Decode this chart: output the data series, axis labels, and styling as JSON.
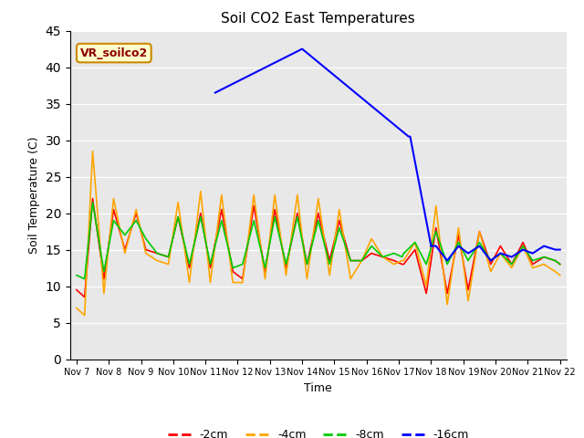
{
  "title": "Soil CO2 East Temperatures",
  "xlabel": "Time",
  "ylabel": "Soil Temperature (C)",
  "ylim": [
    0,
    45
  ],
  "bg_color": "#e8e8e8",
  "legend_label": "VR_soilco2",
  "tick_labels": [
    "Nov 7",
    "Nov 8",
    "Nov 9",
    "Nov 10",
    "Nov 11",
    "Nov 12",
    "Nov 13",
    "Nov 14",
    "Nov 15",
    "Nov 16",
    "Nov 17",
    "Nov 18",
    "Nov 19",
    "Nov 20",
    "Nov 21",
    "Nov 22"
  ],
  "series_labels": [
    "-2cm",
    "-4cm",
    "-8cm",
    "-16cm"
  ],
  "series_colors": [
    "#ff0000",
    "#ffa500",
    "#00cc00",
    "#0000ff"
  ],
  "blue_line_x": [
    4.3,
    7.0,
    10.3,
    10.35,
    11.0
  ],
  "blue_line_y": [
    36.5,
    42.5,
    30.5,
    30.5,
    15.5
  ],
  "red_x": [
    0.0,
    0.25,
    0.5,
    0.85,
    1.15,
    1.5,
    1.85,
    2.15,
    2.5,
    2.85,
    3.15,
    3.5,
    3.85,
    4.15,
    4.5,
    4.85,
    5.15,
    5.5,
    5.85,
    6.15,
    6.5,
    6.85,
    7.15,
    7.5,
    7.85,
    8.15,
    8.5,
    8.85,
    9.15,
    9.5,
    9.85,
    10.1,
    10.15,
    10.5,
    10.85,
    11.15,
    11.5,
    11.85,
    12.15,
    12.5,
    12.85,
    13.15,
    13.5,
    13.85,
    14.15,
    14.5,
    14.85,
    15.0
  ],
  "red_y": [
    9.5,
    8.5,
    22.0,
    11.0,
    20.5,
    15.0,
    20.0,
    15.0,
    14.5,
    14.0,
    19.5,
    12.5,
    20.0,
    12.5,
    20.5,
    12.0,
    11.0,
    21.0,
    12.0,
    20.5,
    12.5,
    20.0,
    13.0,
    20.0,
    13.5,
    19.0,
    13.5,
    13.5,
    14.5,
    14.0,
    13.5,
    13.0,
    13.0,
    15.0,
    9.0,
    18.0,
    9.0,
    17.0,
    9.5,
    17.5,
    13.0,
    15.5,
    13.0,
    16.0,
    13.0,
    14.0,
    13.5,
    13.0
  ],
  "orange_x": [
    0.0,
    0.25,
    0.5,
    0.85,
    1.15,
    1.5,
    1.85,
    2.15,
    2.5,
    2.85,
    3.15,
    3.5,
    3.85,
    4.15,
    4.5,
    4.85,
    5.15,
    5.5,
    5.85,
    6.15,
    6.5,
    6.85,
    7.15,
    7.5,
    7.85,
    8.15,
    8.5,
    8.85,
    9.15,
    9.5,
    9.85,
    10.1,
    10.15,
    10.5,
    10.85,
    11.15,
    11.5,
    11.85,
    12.15,
    12.5,
    12.85,
    13.15,
    13.5,
    13.85,
    14.15,
    14.5,
    14.85,
    15.0
  ],
  "orange_y": [
    7.0,
    6.0,
    28.5,
    9.0,
    22.0,
    14.5,
    20.5,
    14.5,
    13.5,
    13.0,
    21.5,
    10.5,
    23.0,
    10.5,
    22.5,
    10.5,
    10.5,
    22.5,
    11.0,
    22.5,
    11.5,
    22.5,
    11.0,
    22.0,
    11.5,
    20.5,
    11.0,
    13.5,
    16.5,
    14.0,
    13.0,
    13.5,
    13.5,
    16.0,
    10.0,
    21.0,
    7.5,
    18.0,
    8.0,
    17.5,
    12.0,
    14.5,
    12.5,
    15.5,
    12.5,
    13.0,
    12.0,
    11.5
  ],
  "green_x": [
    0.0,
    0.25,
    0.5,
    0.85,
    1.15,
    1.5,
    1.85,
    2.15,
    2.5,
    2.85,
    3.15,
    3.5,
    3.85,
    4.15,
    4.5,
    4.85,
    5.15,
    5.5,
    5.85,
    6.15,
    6.5,
    6.85,
    7.15,
    7.5,
    7.85,
    8.15,
    8.5,
    8.85,
    9.15,
    9.5,
    9.85,
    10.1,
    10.15,
    10.5,
    10.85,
    11.15,
    11.5,
    11.85,
    12.15,
    12.5,
    12.85,
    13.15,
    13.5,
    13.85,
    14.15,
    14.5,
    14.85,
    15.0
  ],
  "green_y": [
    11.5,
    11.0,
    21.5,
    12.0,
    19.0,
    17.0,
    19.0,
    16.5,
    14.5,
    14.0,
    19.5,
    13.0,
    19.5,
    13.0,
    19.0,
    12.5,
    13.0,
    19.0,
    12.5,
    19.5,
    13.0,
    19.5,
    13.0,
    19.0,
    13.0,
    18.0,
    13.5,
    13.5,
    15.5,
    14.0,
    14.5,
    14.0,
    14.5,
    16.0,
    13.0,
    17.5,
    13.0,
    16.0,
    13.5,
    16.0,
    13.5,
    14.5,
    13.0,
    15.5,
    13.5,
    14.0,
    13.5,
    13.0
  ],
  "blue_after_x": [
    11.0,
    11.15,
    11.5,
    11.85,
    12.15,
    12.5,
    12.85,
    13.15,
    13.5,
    13.85,
    14.15,
    14.5,
    14.85,
    15.0
  ],
  "blue_after_y": [
    15.5,
    15.5,
    13.5,
    15.5,
    14.5,
    15.5,
    13.5,
    14.5,
    14.0,
    15.0,
    14.5,
    15.5,
    15.0,
    15.0
  ],
  "yticks": [
    0,
    5,
    10,
    15,
    20,
    25,
    30,
    35,
    40,
    45
  ]
}
